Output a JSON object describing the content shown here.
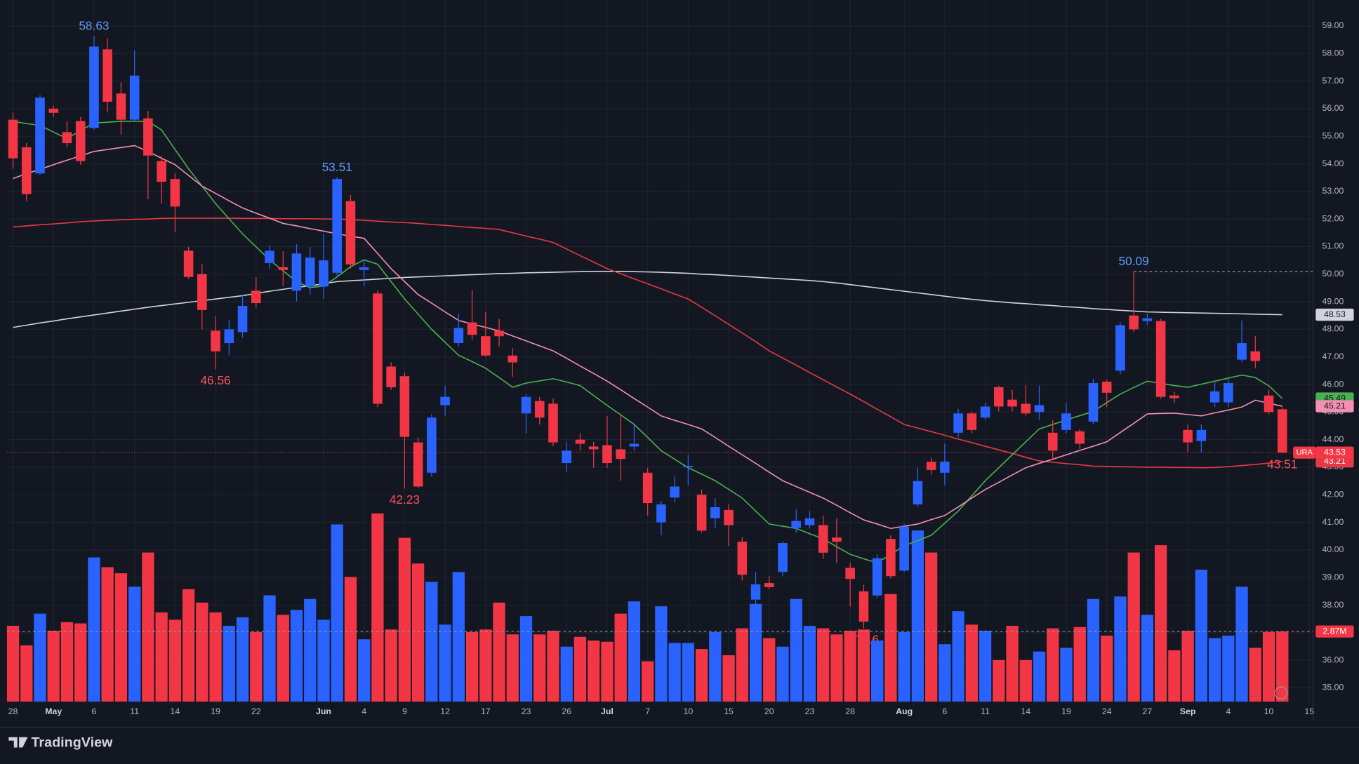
{
  "chart_data": {
    "type": "candlestick",
    "symbol": "URA",
    "brand": "TradingView",
    "up_color": "#2962ff",
    "down_color": "#f23645",
    "categories": [
      "28",
      null,
      null,
      "May",
      null,
      null,
      "6",
      null,
      null,
      "11",
      null,
      null,
      "14",
      null,
      null,
      "19",
      null,
      null,
      "22",
      null,
      null,
      null,
      null,
      "Jun",
      null,
      null,
      "4",
      null,
      null,
      "9",
      null,
      null,
      "12",
      null,
      null,
      "17",
      null,
      null,
      "23",
      null,
      null,
      "26",
      null,
      null,
      "Jul",
      null,
      null,
      "7",
      null,
      null,
      "10",
      null,
      null,
      "15",
      null,
      null,
      "20",
      null,
      null,
      "23",
      null,
      null,
      "28",
      null,
      null,
      null,
      "Aug",
      null,
      null,
      "6",
      null,
      null,
      "11",
      null,
      null,
      "14",
      null,
      null,
      "19",
      null,
      null,
      "24",
      null,
      null,
      "27",
      null,
      null,
      "Sep",
      null,
      null,
      "4",
      null,
      null,
      "10",
      null,
      null,
      "15"
    ],
    "open": [
      55.6,
      54.6,
      53.65,
      56.0,
      55.15,
      55.55,
      55.3,
      58.15,
      56.55,
      55.6,
      55.65,
      54.1,
      53.45,
      50.85,
      50.0,
      47.95,
      47.5,
      47.9,
      49.4,
      50.4,
      50.25,
      49.4,
      49.55,
      49.55,
      50.05,
      52.65,
      50.15,
      49.3,
      46.65,
      46.3,
      43.9,
      42.8,
      45.25,
      47.5,
      48.25,
      47.75,
      47.95,
      47.05,
      44.95,
      45.4,
      45.3,
      43.15,
      44.0,
      43.75,
      43.8,
      43.65,
      43.75,
      42.8,
      41.0,
      41.9,
      43.0,
      42.0,
      41.15,
      41.45,
      40.3,
      38.2,
      38.8,
      39.2,
      40.8,
      40.9,
      40.9,
      40.45,
      39.35,
      38.5,
      38.35,
      40.4,
      39.25,
      41.65,
      43.2,
      42.8,
      44.25,
      44.95,
      44.8,
      45.9,
      45.45,
      45.3,
      45.0,
      44.25,
      44.35,
      44.3,
      44.65,
      46.1,
      46.5,
      48.5,
      48.3,
      48.3,
      45.6,
      44.35,
      43.95,
      45.35,
      45.35,
      46.9,
      47.2,
      45.6,
      45.1,
      null,
      null
    ],
    "high": [
      55.86,
      54.76,
      56.49,
      56.11,
      55.54,
      55.7,
      58.63,
      58.55,
      56.96,
      58.12,
      55.92,
      54.29,
      53.66,
      50.99,
      50.36,
      48.47,
      48.32,
      49.26,
      49.89,
      51.05,
      50.83,
      51.08,
      50.99,
      51.46,
      53.51,
      52.87,
      50.52,
      49.42,
      46.81,
      46.43,
      44.08,
      44.93,
      45.96,
      48.57,
      49.42,
      48.63,
      48.38,
      47.31,
      45.65,
      45.55,
      45.49,
      43.92,
      44.23,
      43.92,
      44.86,
      44.93,
      44.55,
      42.98,
      41.78,
      42.66,
      43.45,
      42.19,
      41.88,
      41.66,
      40.47,
      39.21,
      39.05,
      40.31,
      41.47,
      41.41,
      41.25,
      41.16,
      39.53,
      38.74,
      39.84,
      40.53,
      40.94,
      42.98,
      43.35,
      43.86,
      45.11,
      45.02,
      45.33,
      45.96,
      45.8,
      45.96,
      45.96,
      44.71,
      45.33,
      44.39,
      46.21,
      46.18,
      48.26,
      50.09,
      48.57,
      48.38,
      45.74,
      44.55,
      44.55,
      46.12,
      46.18,
      48.32,
      47.75,
      45.8,
      45.17,
      null,
      null
    ],
    "low": [
      53.82,
      52.65,
      53.6,
      55.7,
      54.6,
      53.97,
      55.23,
      55.86,
      55.07,
      55.54,
      52.72,
      52.56,
      51.52,
      49.83,
      48.0,
      46.56,
      47.06,
      47.69,
      48.79,
      50.2,
      49.57,
      49.01,
      49.26,
      49.1,
      49.95,
      50.2,
      49.57,
      45.18,
      45.8,
      42.23,
      42.25,
      42.66,
      44.86,
      47.38,
      47.63,
      47.0,
      47.38,
      46.28,
      44.23,
      44.55,
      43.76,
      42.82,
      43.6,
      42.98,
      42.98,
      42.51,
      43.6,
      41.25,
      40.53,
      41.72,
      42.35,
      40.62,
      40.78,
      40.15,
      38.89,
      37.95,
      38.58,
      39.05,
      40.62,
      40.78,
      39.68,
      39.53,
      37.95,
      37.16,
      38.26,
      38.96,
      39.21,
      41.56,
      42.73,
      42.35,
      44.08,
      44.23,
      44.71,
      45.02,
      45.02,
      44.86,
      44.71,
      43.29,
      44.23,
      43.67,
      44.55,
      45.18,
      46.37,
      47.91,
      48.16,
      45.49,
      45.33,
      43.54,
      43.54,
      45.18,
      45.18,
      46.81,
      46.59,
      44.93,
      43.51,
      null,
      null
    ],
    "close": [
      54.2,
      52.9,
      56.4,
      55.85,
      54.75,
      54.1,
      58.25,
      56.25,
      55.6,
      57.2,
      54.3,
      53.35,
      52.45,
      49.9,
      48.7,
      47.2,
      48.0,
      48.85,
      48.95,
      50.85,
      50.15,
      50.75,
      50.6,
      50.5,
      53.45,
      50.35,
      50.25,
      45.3,
      45.9,
      44.1,
      42.3,
      44.8,
      45.55,
      48.05,
      47.8,
      47.05,
      47.75,
      46.8,
      45.55,
      44.8,
      43.9,
      43.6,
      43.85,
      43.65,
      43.15,
      43.3,
      43.85,
      41.7,
      41.65,
      42.3,
      43.05,
      40.7,
      41.55,
      40.9,
      39.1,
      38.75,
      38.65,
      40.25,
      41.05,
      41.15,
      39.9,
      40.3,
      38.95,
      37.4,
      39.7,
      39.05,
      40.85,
      42.5,
      42.9,
      43.2,
      44.95,
      44.35,
      45.2,
      45.2,
      45.2,
      44.95,
      45.25,
      43.6,
      44.95,
      43.85,
      46.05,
      45.7,
      48.15,
      48.0,
      48.4,
      45.55,
      45.5,
      43.9,
      44.35,
      45.75,
      46.05,
      47.5,
      46.85,
      45.0,
      43.53,
      null,
      null
    ],
    "series": [
      {
        "color": "#d1d4dc",
        "values": [
          48.07,
          48.15,
          48.23,
          48.3,
          48.38,
          48.45,
          48.52,
          48.59,
          48.66,
          48.73,
          48.8,
          48.86,
          48.92,
          48.98,
          49.04,
          49.1,
          49.16,
          49.22,
          49.3,
          49.38,
          49.45,
          49.52,
          49.58,
          49.65,
          49.73,
          49.76,
          49.79,
          49.82,
          49.85,
          49.88,
          49.9,
          49.92,
          49.94,
          49.96,
          49.98,
          50.0,
          50.02,
          50.03,
          50.05,
          50.06,
          50.07,
          50.08,
          50.09,
          50.1,
          50.1,
          50.1,
          50.09,
          50.08,
          50.07,
          50.05,
          50.03,
          50.0,
          49.98,
          49.95,
          49.92,
          49.89,
          49.86,
          49.83,
          49.8,
          49.77,
          49.73,
          49.68,
          49.62,
          49.56,
          49.5,
          49.44,
          49.38,
          49.32,
          49.26,
          49.2,
          49.14,
          49.09,
          49.04,
          49.0,
          48.96,
          48.93,
          48.89,
          48.86,
          48.82,
          48.79,
          48.75,
          48.72,
          48.69,
          48.66,
          48.63,
          48.62,
          48.61,
          48.6,
          48.59,
          48.58,
          48.57,
          48.56,
          48.55,
          48.54,
          48.53,
          null,
          null
        ]
      },
      {
        "color": "#e53945",
        "values": [
          51.71,
          51.75,
          51.79,
          51.82,
          51.86,
          51.9,
          51.93,
          51.95,
          51.97,
          51.99,
          52.0,
          52.02,
          52.03,
          52.03,
          52.03,
          52.03,
          52.03,
          52.02,
          52.02,
          52.02,
          52.01,
          52.01,
          52.01,
          52.0,
          52.0,
          51.98,
          51.95,
          51.92,
          51.89,
          51.87,
          51.84,
          51.8,
          51.77,
          51.73,
          51.69,
          51.66,
          51.62,
          51.5,
          51.38,
          51.27,
          51.15,
          50.91,
          50.67,
          50.44,
          50.2,
          50.02,
          49.83,
          49.65,
          49.47,
          49.28,
          49.1,
          48.8,
          48.49,
          48.18,
          47.87,
          47.55,
          47.22,
          46.96,
          46.7,
          46.43,
          46.17,
          45.91,
          45.65,
          45.38,
          45.1,
          44.83,
          44.55,
          44.42,
          44.29,
          44.16,
          44.02,
          43.89,
          43.76,
          43.63,
          43.5,
          43.36,
          43.23,
          43.18,
          43.13,
          43.09,
          43.04,
          43.03,
          43.02,
          43.01,
          43.0,
          43.0,
          42.99,
          42.99,
          42.98,
          42.99,
          43.02,
          43.06,
          43.1,
          43.15,
          43.21,
          null,
          null
        ]
      },
      {
        "color": "#4caf50",
        "values": [
          55.54,
          55.46,
          55.39,
          55.15,
          54.92,
          55.2,
          55.48,
          55.51,
          55.54,
          55.54,
          55.54,
          55.23,
          54.52,
          53.82,
          53.19,
          52.56,
          52.01,
          51.46,
          50.99,
          50.52,
          50.12,
          49.73,
          49.51,
          49.57,
          49.9,
          50.27,
          50.52,
          50.36,
          49.73,
          49.1,
          48.55,
          48.0,
          47.53,
          47.06,
          46.83,
          46.59,
          46.25,
          45.9,
          46.05,
          46.13,
          46.21,
          46.09,
          45.96,
          45.6,
          45.24,
          44.9,
          44.55,
          44.08,
          43.6,
          43.29,
          42.98,
          42.75,
          42.51,
          42.2,
          41.88,
          41.41,
          40.94,
          40.86,
          40.78,
          40.59,
          40.4,
          40.12,
          39.84,
          39.68,
          39.53,
          39.84,
          40.15,
          40.34,
          40.53,
          40.97,
          41.41,
          41.96,
          42.51,
          42.98,
          43.45,
          43.92,
          44.39,
          44.55,
          44.71,
          44.87,
          45.02,
          45.34,
          45.65,
          45.89,
          46.12,
          46.04,
          45.96,
          45.9,
          46.01,
          46.12,
          46.23,
          46.34,
          46.25,
          45.95,
          45.49,
          null,
          null
        ]
      },
      {
        "color": "#f48fb1",
        "values": [
          53.47,
          53.64,
          53.8,
          53.97,
          54.13,
          54.29,
          54.45,
          54.52,
          54.59,
          54.66,
          54.45,
          54.2,
          53.97,
          53.58,
          53.19,
          52.93,
          52.66,
          52.4,
          52.21,
          52.03,
          51.84,
          51.75,
          51.65,
          51.56,
          51.46,
          51.38,
          51.3,
          50.75,
          50.2,
          49.73,
          49.26,
          48.95,
          48.63,
          48.32,
          48.19,
          48.07,
          47.94,
          47.76,
          47.58,
          47.4,
          47.22,
          46.95,
          46.67,
          46.4,
          46.12,
          45.81,
          45.49,
          45.18,
          44.86,
          44.7,
          44.55,
          44.39,
          44.08,
          43.76,
          43.45,
          43.14,
          42.82,
          42.51,
          42.3,
          42.09,
          41.88,
          41.62,
          41.35,
          41.09,
          40.94,
          40.78,
          40.86,
          40.94,
          41.1,
          41.25,
          41.56,
          41.88,
          42.19,
          42.45,
          42.72,
          42.98,
          43.14,
          43.29,
          43.45,
          43.61,
          43.76,
          43.92,
          44.26,
          44.59,
          44.93,
          44.95,
          44.96,
          44.91,
          44.86,
          44.97,
          45.07,
          45.18,
          45.43,
          45.32,
          45.21,
          null,
          null
        ]
      }
    ],
    "volume": {
      "color_up": "#2962ff",
      "color_down": "#f23645",
      "ylim": [
        0,
        28.7
      ],
      "values": [
        3.1,
        2.3,
        3.6,
        2.9,
        3.25,
        3.2,
        5.9,
        5.5,
        5.25,
        4.7,
        6.1,
        3.65,
        3.35,
        4.6,
        4.05,
        3.65,
        3.1,
        3.45,
        2.85,
        4.35,
        3.55,
        3.75,
        4.2,
        3.35,
        7.25,
        5.1,
        2.55,
        7.7,
        2.95,
        6.7,
        5.65,
        4.9,
        3.15,
        5.3,
        2.85,
        2.95,
        4.05,
        2.75,
        3.5,
        2.75,
        2.9,
        2.25,
        2.65,
        2.5,
        2.45,
        3.6,
        4.1,
        1.65,
        3.9,
        2.4,
        2.4,
        2.15,
        2.85,
        1.9,
        3.0,
        4.0,
        2.6,
        2.25,
        4.2,
        3.1,
        3.0,
        2.75,
        2.9,
        2.95,
        2.5,
        4.4,
        2.85,
        7.0,
        6.1,
        2.35,
        3.7,
        3.15,
        2.9,
        1.7,
        3.1,
        1.7,
        2.05,
        3.0,
        2.2,
        3.05,
        4.2,
        2.7,
        4.3,
        6.1,
        3.55,
        6.4,
        2.1,
        2.9,
        5.4,
        2.6,
        2.7,
        4.7,
        2.2,
        2.85,
        2.87,
        null,
        null
      ],
      "value_labels": [
        null,
        null,
        null,
        null,
        null,
        null,
        null,
        null,
        null,
        null,
        null,
        null,
        null,
        null,
        null,
        null,
        null,
        null,
        null,
        null,
        null,
        null,
        null,
        null,
        null,
        null,
        null,
        null,
        null,
        null,
        null,
        null,
        null,
        null,
        null,
        null,
        null,
        null,
        null,
        null,
        null,
        null,
        null,
        null,
        null,
        null,
        null,
        null,
        null,
        null,
        null,
        null,
        null,
        null,
        null,
        null,
        null,
        null,
        null,
        null,
        null,
        null,
        null,
        null,
        null,
        null,
        null,
        null,
        null,
        null,
        null,
        null,
        null,
        null,
        null,
        null,
        null,
        null,
        null,
        null,
        null,
        null,
        null,
        null,
        null,
        null,
        null,
        null,
        null,
        null,
        null,
        null,
        null,
        null,
        "2.87M",
        null,
        null
      ]
    },
    "ylim": [
      34.5,
      59.94
    ],
    "yticks": [
      {
        "value": 35,
        "label": "35.00"
      },
      {
        "value": 36,
        "label": "36.00"
      },
      {
        "value": 37,
        "label": "37.00"
      },
      {
        "value": 38,
        "label": "38.00"
      },
      {
        "value": 39,
        "label": "39.00"
      },
      {
        "value": 40,
        "label": "40.00"
      },
      {
        "value": 41,
        "label": "41.00"
      },
      {
        "value": 42,
        "label": "42.00"
      },
      {
        "value": 43,
        "label": "43.00"
      },
      {
        "value": 44,
        "label": "44.00"
      },
      {
        "value": 45,
        "label": "45.00"
      },
      {
        "value": 46,
        "label": "46.00"
      },
      {
        "value": 47,
        "label": "47.00"
      },
      {
        "value": 48,
        "label": "48.00"
      },
      {
        "value": 49,
        "label": "49.00"
      },
      {
        "value": 50,
        "label": "50.00"
      },
      {
        "value": 51,
        "label": "51.00"
      },
      {
        "value": 52,
        "label": "52.00"
      },
      {
        "value": 53,
        "label": "53.00"
      },
      {
        "value": 54,
        "label": "54.00"
      },
      {
        "value": 55,
        "label": "55.00"
      },
      {
        "value": 56,
        "label": "56.00"
      },
      {
        "value": 57,
        "label": "57.00"
      },
      {
        "value": 58,
        "label": "58.00"
      },
      {
        "value": 59,
        "label": "59.00"
      }
    ],
    "grid": true
  }
}
